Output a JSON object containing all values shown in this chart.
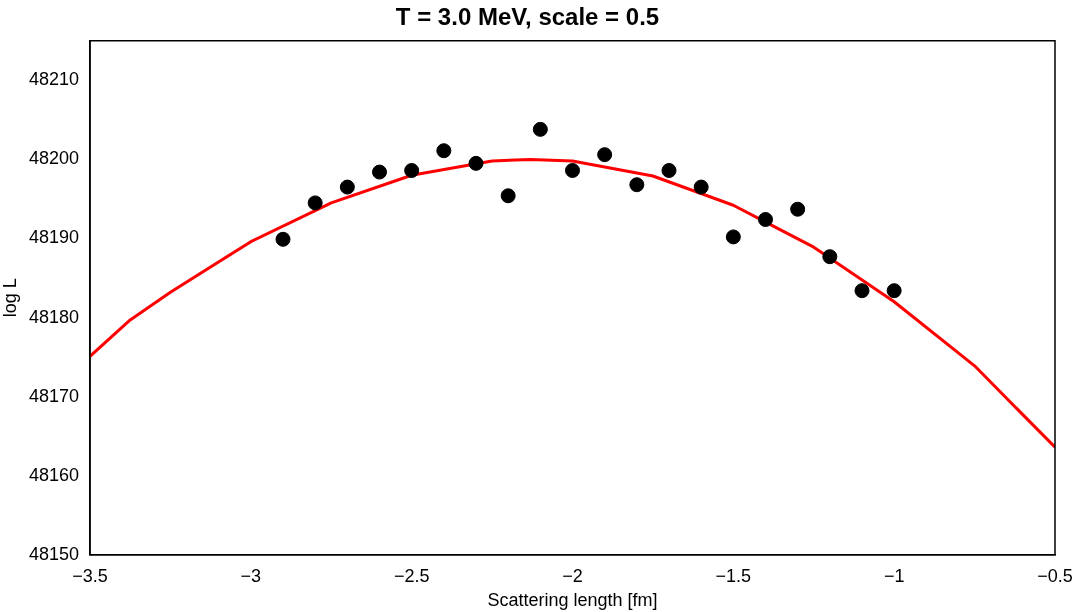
{
  "chart_data": {
    "type": "scatter",
    "title": "T = 3.0 MeV, scale = 0.5",
    "xlabel": "Scattering length [fm]",
    "ylabel": "log L",
    "xlim": [
      -3.5,
      -0.5
    ],
    "xticks": [
      {
        "value": -3.5,
        "label": "−3.5"
      },
      {
        "value": -3,
        "label": "−3"
      },
      {
        "value": -2.5,
        "label": "−2.5"
      },
      {
        "value": -2,
        "label": "−2"
      },
      {
        "value": -1.5,
        "label": "−1.5"
      },
      {
        "value": -1,
        "label": "−1"
      },
      {
        "value": -0.5,
        "label": "−0.5"
      }
    ],
    "ylim": [
      48150,
      48215
    ],
    "yticks": [
      48150,
      48160,
      48170,
      48180,
      48190,
      48200,
      48210
    ],
    "grid": false,
    "legend": false,
    "series": [
      {
        "type": "scatter",
        "color": "#000000",
        "marker": "circle",
        "x": [
          -2.9,
          -2.8,
          -2.7,
          -2.6,
          -2.5,
          -2.4,
          -2.3,
          -2.2,
          -2.1,
          -2.0,
          -1.9,
          -1.8,
          -1.7,
          -1.6,
          -1.5,
          -1.4,
          -1.3,
          -1.2,
          -1.1,
          -1.0
        ],
        "values": [
          48189.9,
          48194.5,
          48196.5,
          48198.4,
          48198.6,
          48201.1,
          48199.5,
          48195.4,
          48203.8,
          48198.6,
          48200.6,
          48196.8,
          48198.6,
          48196.5,
          48190.2,
          48192.4,
          48193.7,
          48187.7,
          48183.4,
          48183.4
        ]
      },
      {
        "type": "line",
        "color": "#ff0000",
        "marker": "none",
        "line_style": "solid",
        "x": [
          -3.5,
          -3.375,
          -3.25,
          -3.0,
          -2.75,
          -2.5,
          -2.25,
          -2.13,
          -2.0,
          -1.75,
          -1.5,
          -1.25,
          -1.0,
          -0.75,
          -0.5
        ],
        "values": [
          48175.1,
          48179.7,
          48183.2,
          48189.6,
          48194.5,
          48198.0,
          48199.8,
          48200.0,
          48199.8,
          48197.9,
          48194.2,
          48188.9,
          48182.0,
          48173.9,
          48163.6
        ]
      }
    ]
  }
}
